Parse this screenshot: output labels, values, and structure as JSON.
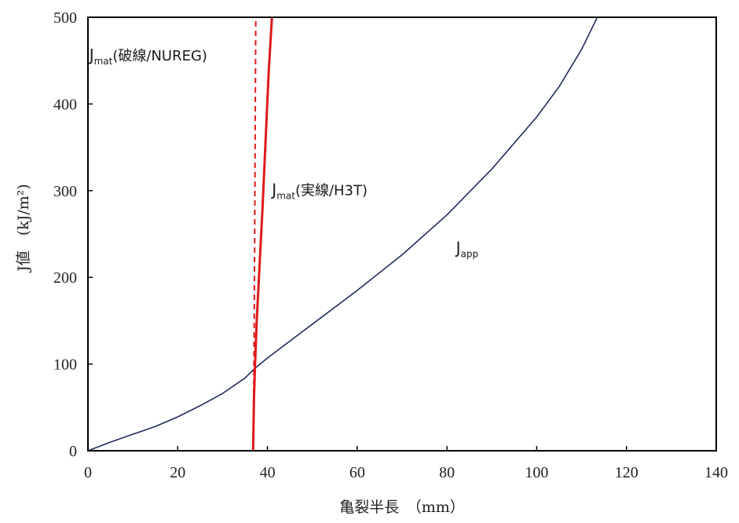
{
  "chart_data": {
    "type": "line",
    "xlabel": "亀裂半長　（mm）",
    "ylabel": "J値　(kJ/m²)",
    "xlim": [
      0,
      140
    ],
    "ylim": [
      0,
      500
    ],
    "x_ticks": [
      0,
      20,
      40,
      60,
      80,
      100,
      120,
      140
    ],
    "y_ticks": [
      0,
      100,
      200,
      300,
      400,
      500
    ],
    "grid": false,
    "series": [
      {
        "name": "J_app",
        "color": "#1f2d5a",
        "style": "solid",
        "points": [
          [
            0,
            0
          ],
          [
            5,
            10
          ],
          [
            10,
            19
          ],
          [
            15,
            28
          ],
          [
            20,
            39
          ],
          [
            25,
            52
          ],
          [
            30,
            66
          ],
          [
            35,
            84
          ],
          [
            37.2,
            95
          ],
          [
            40,
            107
          ],
          [
            50,
            146
          ],
          [
            60,
            185
          ],
          [
            70,
            226
          ],
          [
            80,
            272
          ],
          [
            90,
            325
          ],
          [
            100,
            385
          ],
          [
            105,
            420
          ],
          [
            110,
            463
          ],
          [
            113.5,
            500
          ]
        ]
      },
      {
        "name": "J_mat(実線/H3T)",
        "color": "#e0191b",
        "style": "solid",
        "points": [
          [
            36.8,
            0
          ],
          [
            37.0,
            60
          ],
          [
            37.2,
            95
          ],
          [
            37.6,
            150
          ],
          [
            38.2,
            210
          ],
          [
            38.9,
            280
          ],
          [
            39.6,
            360
          ],
          [
            40.3,
            440
          ],
          [
            41.0,
            500
          ]
        ]
      },
      {
        "name": "J_mat(破線/NUREG)",
        "color": "#e0191b",
        "style": "dashed",
        "points": [
          [
            36.8,
            0
          ],
          [
            37.0,
            100
          ],
          [
            37.1,
            200
          ],
          [
            37.2,
            300
          ],
          [
            37.3,
            400
          ],
          [
            37.4,
            500
          ]
        ]
      }
    ],
    "annotations": [
      {
        "id": "nureg",
        "base": "J",
        "sub": "mat",
        "rest": "(破線/NUREG)",
        "x": 0.3,
        "y": 450
      },
      {
        "id": "h3t",
        "base": "J",
        "sub": "mat",
        "rest": "(実線/H3T)",
        "x": 41,
        "y": 295
      },
      {
        "id": "app",
        "base": "J",
        "sub": "app",
        "rest": "",
        "x": 82,
        "y": 228
      }
    ]
  }
}
